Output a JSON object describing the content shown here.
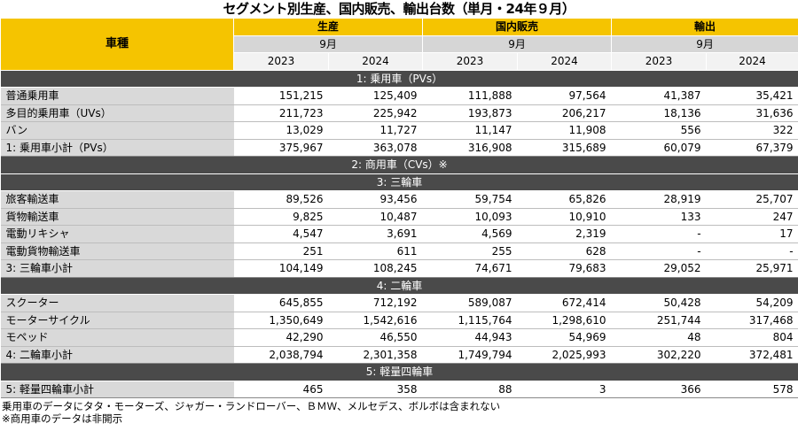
{
  "title": "セグメント別生産、国内販売、輸出台数（単月・24年９月）",
  "header": {
    "vehicle_type": "車種",
    "groups": [
      {
        "label": "生産",
        "month": "9月"
      },
      {
        "label": "国内販売",
        "month": "9月"
      },
      {
        "label": "輸出",
        "month": "9月"
      }
    ],
    "years": [
      "2023",
      "2024",
      "2023",
      "2024",
      "2023",
      "2024"
    ]
  },
  "sections": [
    {
      "kind": "band",
      "label": "1: 乗用車（PVs）"
    },
    {
      "kind": "row",
      "label": "普通乗用車",
      "values": [
        "151,215",
        "125,409",
        "111,888",
        "97,564",
        "41,387",
        "35,421"
      ]
    },
    {
      "kind": "row",
      "label": "多目的乗用車（UVs）",
      "values": [
        "211,723",
        "225,942",
        "193,873",
        "206,217",
        "18,136",
        "31,636"
      ]
    },
    {
      "kind": "row",
      "label": "バン",
      "values": [
        "13,029",
        "11,727",
        "11,147",
        "11,908",
        "556",
        "322"
      ]
    },
    {
      "kind": "subtotal",
      "label": "1: 乗用車小計（PVs）",
      "values": [
        "375,967",
        "363,078",
        "316,908",
        "315,689",
        "60,079",
        "67,379"
      ]
    },
    {
      "kind": "band",
      "label": "2: 商用車（CVs）※"
    },
    {
      "kind": "band",
      "label": "3: 三輪車"
    },
    {
      "kind": "row",
      "label": "旅客輸送車",
      "values": [
        "89,526",
        "93,456",
        "59,754",
        "65,826",
        "28,919",
        "25,707"
      ]
    },
    {
      "kind": "row",
      "label": "貨物輸送車",
      "values": [
        "9,825",
        "10,487",
        "10,093",
        "10,910",
        "133",
        "247"
      ]
    },
    {
      "kind": "row",
      "label": "電動リキシャ",
      "values": [
        "4,547",
        "3,691",
        "4,569",
        "2,319",
        "-",
        "17"
      ]
    },
    {
      "kind": "row",
      "label": "電動貨物輸送車",
      "values": [
        "251",
        "611",
        "255",
        "628",
        "-",
        "-"
      ]
    },
    {
      "kind": "subtotal",
      "label": "3: 三輪車小計",
      "values": [
        "104,149",
        "108,245",
        "74,671",
        "79,683",
        "29,052",
        "25,971"
      ]
    },
    {
      "kind": "band",
      "label": "4: 二輪車"
    },
    {
      "kind": "row",
      "label": "スクーター",
      "values": [
        "645,855",
        "712,192",
        "589,087",
        "672,414",
        "50,428",
        "54,209"
      ]
    },
    {
      "kind": "row",
      "label": "モーターサイクル",
      "values": [
        "1,350,649",
        "1,542,616",
        "1,115,764",
        "1,298,610",
        "251,744",
        "317,468"
      ]
    },
    {
      "kind": "row",
      "label": "モペッド",
      "values": [
        "42,290",
        "46,550",
        "44,943",
        "54,969",
        "48",
        "804"
      ]
    },
    {
      "kind": "subtotal",
      "label": "4: 二輪車小計",
      "values": [
        "2,038,794",
        "2,301,358",
        "1,749,794",
        "2,025,993",
        "302,220",
        "372,481"
      ]
    },
    {
      "kind": "band",
      "label": "5: 軽量四輪車"
    },
    {
      "kind": "subtotal",
      "label": "5: 軽量四輪車小計",
      "values": [
        "465",
        "358",
        "88",
        "3",
        "366",
        "578"
      ]
    }
  ],
  "notes": [
    "乗用車のデータにタタ・モーターズ、ジャガー・ランドローバー、ＢＭＷ、メルセデス、ボルボは含まれない",
    "※商用車のデータは非開示"
  ]
}
